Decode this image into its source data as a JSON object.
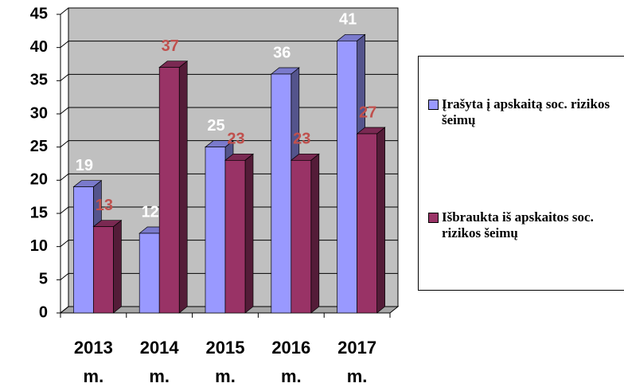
{
  "chart_data": {
    "type": "bar",
    "categories": [
      "2013 m.",
      "2014 m.",
      "2015 m.",
      "2016 m.",
      "2017 m."
    ],
    "series": [
      {
        "name": "Įrašyta į apskaitą soc. rizikos šeimų",
        "color": "#9999ff",
        "label_color": "#ffffff",
        "values": [
          19,
          12,
          25,
          36,
          41
        ]
      },
      {
        "name": "Išbraukta iš apskaitos soc. rizikos šeimų",
        "color": "#993366",
        "label_color": "#c0504d",
        "values": [
          13,
          37,
          23,
          23,
          27
        ]
      }
    ],
    "ylim": [
      0,
      45
    ],
    "yticks": [
      0,
      5,
      10,
      15,
      20,
      25,
      30,
      35,
      40,
      45
    ],
    "grid": true,
    "legend": "right"
  }
}
